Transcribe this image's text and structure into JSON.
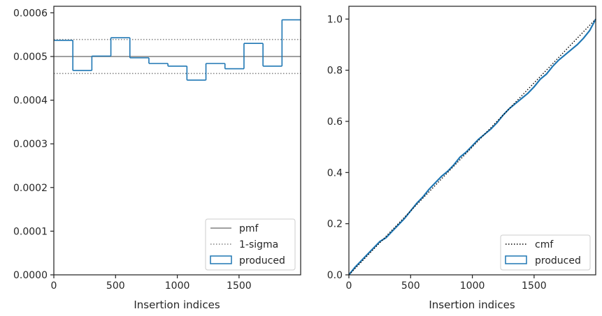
{
  "chart_data": [
    {
      "type": "step",
      "xlabel": "Insertion indices",
      "ylabel": "",
      "xlim": [
        0,
        1999
      ],
      "ylim": [
        0,
        0.000615
      ],
      "xticks": [
        0,
        500,
        1000,
        1500
      ],
      "xtick_labels": [
        "0",
        "500",
        "1000",
        "1500"
      ],
      "yticks": [
        0,
        0.0001,
        0.0002,
        0.0003,
        0.0004,
        0.0005,
        0.0006
      ],
      "ytick_labels": [
        "0.0000",
        "0.0001",
        "0.0002",
        "0.0003",
        "0.0004",
        "0.0005",
        "0.0006"
      ],
      "pmf": 0.0005,
      "sigma_lines": [
        0.000539,
        0.000461
      ],
      "bin_edges": [
        0,
        154,
        308,
        462,
        616,
        770,
        924,
        1078,
        1232,
        1386,
        1540,
        1694,
        1848,
        1999
      ],
      "produced": [
        0.000537,
        0.000468,
        0.000501,
        0.000543,
        0.000497,
        0.000484,
        0.000478,
        0.000446,
        0.000484,
        0.000472,
        0.00053,
        0.000478,
        0.000584
      ],
      "legend": {
        "placement": "lower-right",
        "entries": [
          {
            "label": "pmf",
            "style": "solid",
            "color": "#808080"
          },
          {
            "label": "1-sigma",
            "style": "dotted",
            "color": "#808080"
          },
          {
            "label": "produced",
            "style": "patch",
            "color": "#1f77b4"
          }
        ]
      }
    },
    {
      "type": "line",
      "xlabel": "Insertion indices",
      "ylabel": "",
      "xlim": [
        0,
        1999
      ],
      "ylim": [
        0,
        1.05
      ],
      "xticks": [
        0,
        500,
        1000,
        1500
      ],
      "xtick_labels": [
        "0",
        "500",
        "1000",
        "1500"
      ],
      "yticks": [
        0,
        0.2,
        0.4,
        0.6,
        0.8,
        1.0
      ],
      "ytick_labels": [
        "0.0",
        "0.2",
        "0.4",
        "0.6",
        "0.8",
        "1.0"
      ],
      "cmf": {
        "x": [
          0,
          1999
        ],
        "y": [
          0,
          1.0
        ]
      },
      "produced": {
        "x": [
          0,
          50,
          100,
          150,
          200,
          250,
          300,
          350,
          400,
          450,
          500,
          550,
          600,
          650,
          700,
          750,
          800,
          850,
          900,
          950,
          1000,
          1050,
          1100,
          1150,
          1200,
          1250,
          1300,
          1350,
          1400,
          1450,
          1500,
          1550,
          1600,
          1650,
          1700,
          1750,
          1800,
          1850,
          1900,
          1950,
          1999
        ],
        "y": [
          0,
          0.03,
          0.055,
          0.08,
          0.105,
          0.13,
          0.145,
          0.17,
          0.195,
          0.22,
          0.25,
          0.28,
          0.305,
          0.335,
          0.36,
          0.385,
          0.405,
          0.43,
          0.46,
          0.48,
          0.505,
          0.53,
          0.55,
          0.57,
          0.595,
          0.625,
          0.65,
          0.67,
          0.69,
          0.71,
          0.735,
          0.765,
          0.785,
          0.815,
          0.84,
          0.86,
          0.88,
          0.9,
          0.925,
          0.955,
          1.0
        ]
      },
      "legend": {
        "placement": "lower-right",
        "entries": [
          {
            "label": "cmf",
            "style": "dotted",
            "color": "#000000"
          },
          {
            "label": "produced",
            "style": "patch",
            "color": "#1f77b4"
          }
        ]
      }
    }
  ]
}
